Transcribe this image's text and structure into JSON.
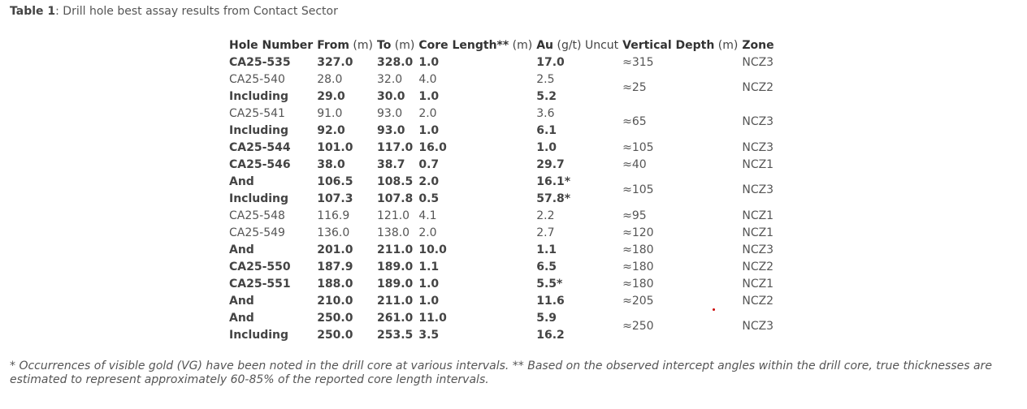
{
  "caption": {
    "label": "Table 1",
    "text": ": Drill hole best assay results from Contact Sector"
  },
  "headers": {
    "hole_bold": "Hole Number",
    "from_bold": "From",
    "from_unit": " (m)",
    "to_bold": "To",
    "to_unit": " (m)",
    "core_bold": "Core Length**",
    "core_unit": " (m)",
    "au_bold": "Au",
    "au_unit": " (g/t) Uncut",
    "vd_bold": "Vertical Depth",
    "vd_unit": " (m)",
    "zone_bold": "Zone"
  },
  "rows": [
    {
      "hole": "CA25-535",
      "from": "327.0",
      "to": "328.0",
      "core": "1.0",
      "au": "17.0",
      "vd": "≈315",
      "zone": "NCZ3",
      "bold": true
    },
    {
      "hole": "CA25-540",
      "from": "28.0",
      "to": "32.0",
      "core": "4.0",
      "au": "2.5",
      "vd": "≈25",
      "zone": "NCZ2",
      "bold": false
    },
    {
      "hole": "Including",
      "from": "29.0",
      "to": "30.0",
      "core": "1.0",
      "au": "5.2",
      "bold": true
    },
    {
      "hole": "CA25-541",
      "from": "91.0",
      "to": "93.0",
      "core": "2.0",
      "au": "3.6",
      "vd": "≈65",
      "zone": "NCZ3",
      "bold": false
    },
    {
      "hole": "Including",
      "from": "92.0",
      "to": "93.0",
      "core": "1.0",
      "au": "6.1",
      "bold": true
    },
    {
      "hole": "CA25-544",
      "from": "101.0",
      "to": "117.0",
      "core": "16.0",
      "au": "1.0",
      "vd": "≈105",
      "zone": "NCZ3",
      "bold": true
    },
    {
      "hole": "CA25-546",
      "from": "38.0",
      "to": "38.7",
      "core": "0.7",
      "au": "29.7",
      "vd": "≈40",
      "zone": "NCZ1",
      "bold": true
    },
    {
      "hole": "And",
      "from": "106.5",
      "to": "108.5",
      "core": "2.0",
      "au": "16.1*",
      "vd": "≈105",
      "zone": "NCZ3",
      "bold": true
    },
    {
      "hole": "Including",
      "from": "107.3",
      "to": "107.8",
      "core": "0.5",
      "au": "57.8*",
      "bold": true
    },
    {
      "hole": "CA25-548",
      "from": "116.9",
      "to": "121.0",
      "core": "4.1",
      "au": "2.2",
      "vd": "≈95",
      "zone": "NCZ1",
      "bold": false
    },
    {
      "hole": "CA25-549",
      "from": "136.0",
      "to": "138.0",
      "core": "2.0",
      "au": "2.7",
      "vd": "≈120",
      "zone": "NCZ1",
      "bold": false
    },
    {
      "hole": "And",
      "from": "201.0",
      "to": "211.0",
      "core": "10.0",
      "au": "1.1",
      "vd": "≈180",
      "zone": "NCZ3",
      "bold": true
    },
    {
      "hole": "CA25-550",
      "from": "187.9",
      "to": "189.0",
      "core": "1.1",
      "au": "6.5",
      "vd": "≈180",
      "zone": "NCZ2",
      "bold": true
    },
    {
      "hole": "CA25-551",
      "from": "188.0",
      "to": "189.0",
      "core": "1.0",
      "au": "5.5*",
      "vd": "≈180",
      "zone": "NCZ1",
      "bold": true
    },
    {
      "hole": "And",
      "from": "210.0",
      "to": "211.0",
      "core": "1.0",
      "au": "11.6",
      "vd": "≈205",
      "zone": "NCZ2",
      "bold": true
    },
    {
      "hole": "And",
      "from": "250.0",
      "to": "261.0",
      "core": "11.0",
      "au": "5.9",
      "vd": "≈250",
      "zone": "NCZ3",
      "bold": true
    },
    {
      "hole": "Including",
      "from": "250.0",
      "to": "253.5",
      "core": "3.5",
      "au": "16.2",
      "bold": true
    }
  ],
  "footnote": "* Occurrences of visible gold (VG) have been noted in the drill core at various intervals. ** Based on the observed intercept angles within the drill core, true thicknesses are estimated to represent approximately 60-85% of the reported core length intervals."
}
